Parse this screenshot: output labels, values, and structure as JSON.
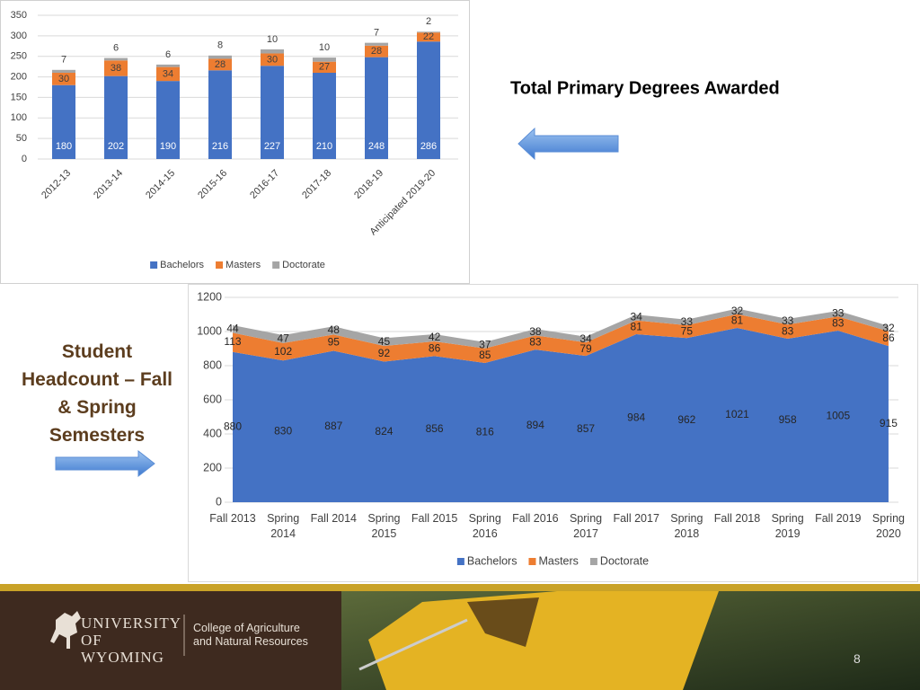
{
  "chart_data": [
    {
      "type": "bar",
      "stacked": true,
      "title": "Total Primary Degrees Awarded",
      "categories": [
        "2012-13",
        "2013-14",
        "2014-15",
        "2015-16",
        "2016-17",
        "2017-18",
        "2018-19",
        "Anticipated 2019-20"
      ],
      "series": [
        {
          "name": "Bachelors",
          "color": "#4472c4",
          "values": [
            180,
            202,
            190,
            216,
            227,
            210,
            248,
            286
          ]
        },
        {
          "name": "Masters",
          "color": "#ed7d31",
          "values": [
            30,
            38,
            34,
            28,
            30,
            27,
            28,
            22
          ]
        },
        {
          "name": "Doctorate",
          "color": "#a5a5a5",
          "values": [
            7,
            6,
            6,
            8,
            10,
            10,
            7,
            2
          ]
        }
      ],
      "ylim": [
        0,
        350
      ],
      "yticks": [
        0,
        50,
        100,
        150,
        200,
        250,
        300,
        350
      ],
      "grid": true,
      "legend": "bottom"
    },
    {
      "type": "area",
      "stacked": true,
      "title": "Student Headcount – Fall & Spring Semesters",
      "categories": [
        "Fall 2013",
        "Spring 2014",
        "Fall 2014",
        "Spring 2015",
        "Fall 2015",
        "Spring 2016",
        "Fall 2016",
        "Spring 2017",
        "Fall 2017",
        "Spring 2018",
        "Fall 2018",
        "Spring 2019",
        "Fall 2019",
        "Spring 2020"
      ],
      "series": [
        {
          "name": "Bachelors",
          "color": "#4472c4",
          "values": [
            880,
            830,
            887,
            824,
            856,
            816,
            894,
            857,
            984,
            962,
            1021,
            958,
            1005,
            915
          ]
        },
        {
          "name": "Masters",
          "color": "#ed7d31",
          "values": [
            113,
            102,
            95,
            92,
            86,
            85,
            83,
            79,
            81,
            75,
            81,
            83,
            83,
            86
          ]
        },
        {
          "name": "Doctorate",
          "color": "#a5a5a5",
          "values": [
            44,
            47,
            48,
            45,
            42,
            37,
            38,
            34,
            34,
            33,
            32,
            33,
            33,
            32
          ]
        }
      ],
      "ylim": [
        0,
        1200
      ],
      "yticks": [
        0,
        200,
        400,
        600,
        800,
        1000,
        1200
      ],
      "grid": true,
      "legend": "bottom"
    }
  ],
  "footer": {
    "logo": "UNIVERSITY OF WYOMING",
    "college": "College of Agriculture and Natural Resources",
    "page": "8"
  }
}
